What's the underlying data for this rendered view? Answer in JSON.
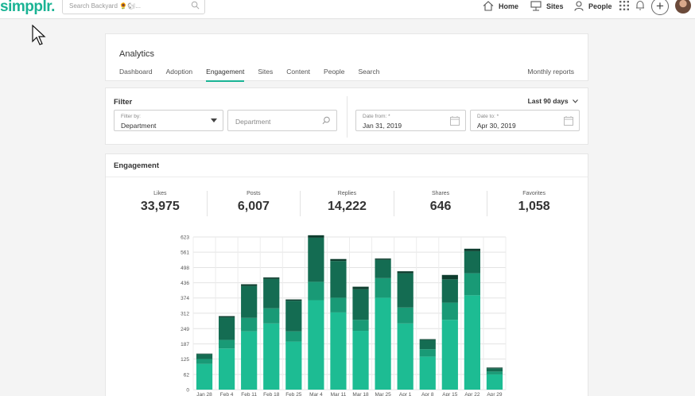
{
  "app": {
    "logo": "simpplr."
  },
  "search": {
    "placeholder": "Search Backyard 🌻🐿..."
  },
  "topnav": {
    "home": "Home",
    "sites": "Sites",
    "people": "People"
  },
  "icons": {
    "search": "search-icon",
    "home": "home-icon",
    "sites": "sites-icon",
    "people": "person-icon",
    "apps": "grid-icon",
    "notifications": "bell-icon",
    "add": "plus-icon",
    "calendar": "calendar-icon",
    "dropdown": "chevron-down-icon"
  },
  "add_symbol": "+",
  "analytics": {
    "title": "Analytics",
    "tabs": [
      {
        "label": "Dashboard",
        "active": false
      },
      {
        "label": "Adoption",
        "active": false
      },
      {
        "label": "Engagement",
        "active": true
      },
      {
        "label": "Sites",
        "active": false
      },
      {
        "label": "Content",
        "active": false
      },
      {
        "label": "People",
        "active": false
      },
      {
        "label": "Search",
        "active": false
      }
    ],
    "monthly_reports": "Monthly reports"
  },
  "filter": {
    "title": "Filter",
    "range": "Last 90 days",
    "filter_by_label": "Filter by:",
    "filter_by_value": "Department",
    "department_placeholder": "Department",
    "date_from_label": "Date from: *",
    "date_from_value": "Jan 31, 2019",
    "date_to_label": "Date to: *",
    "date_to_value": "Apr 30, 2019"
  },
  "engagement": {
    "title": "Engagement",
    "stats": [
      {
        "label": "Likes",
        "value": "33,975"
      },
      {
        "label": "Posts",
        "value": "6,007"
      },
      {
        "label": "Replies",
        "value": "14,222"
      },
      {
        "label": "Shares",
        "value": "646"
      },
      {
        "label": "Favorites",
        "value": "1,058"
      }
    ]
  },
  "colors": {
    "accent": "#1ab394",
    "seg1": "#1dbc93",
    "seg2": "#199a76",
    "seg3": "#146c52",
    "seg4": "#0e3d2e"
  },
  "chart_data": {
    "type": "bar",
    "stacked": true,
    "categories": [
      "Jan 28",
      "Feb 4",
      "Feb 11",
      "Feb 18",
      "Feb 25",
      "Mar 4",
      "Mar 11",
      "Mar 18",
      "Mar 25",
      "Apr 1",
      "Apr 8",
      "Apr 15",
      "Apr 22",
      "Apr 29"
    ],
    "series": [
      {
        "values": [
          105,
          168,
          238,
          270,
          196,
          365,
          315,
          240,
          375,
          270,
          135,
          285,
          385,
          62
        ]
      },
      {
        "values": [
          20,
          35,
          55,
          62,
          42,
          75,
          60,
          45,
          80,
          65,
          30,
          70,
          90,
          12
        ]
      },
      {
        "values": [
          20,
          92,
          130,
          120,
          125,
          180,
          150,
          125,
          75,
          140,
          38,
          95,
          90,
          13
        ]
      },
      {
        "values": [
          2,
          5,
          7,
          6,
          5,
          10,
          8,
          10,
          5,
          8,
          3,
          18,
          10,
          3
        ]
      }
    ],
    "yticks": [
      0,
      62,
      125,
      187,
      249,
      312,
      374,
      436,
      498,
      561,
      623
    ],
    "ylim": [
      0,
      623
    ],
    "grid": true
  }
}
